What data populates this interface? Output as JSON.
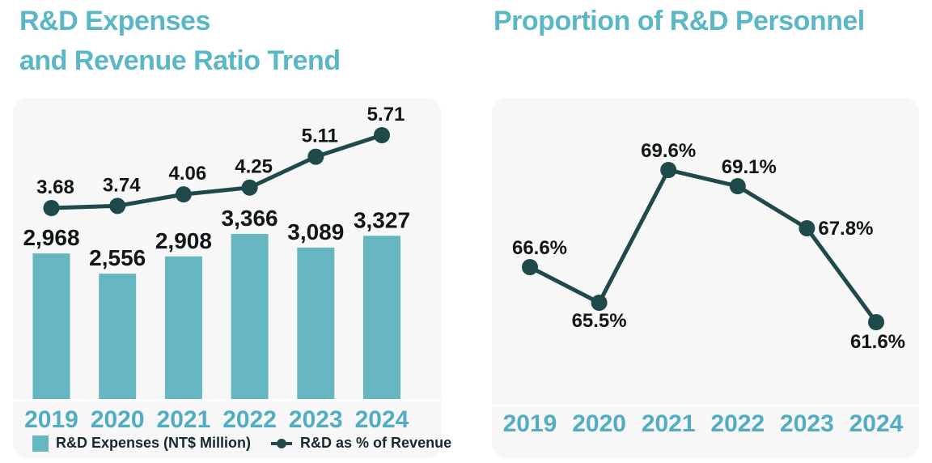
{
  "page": {
    "left_title_line1": "R&D Expenses",
    "left_title_line2": "and Revenue Ratio Trend",
    "right_title": "Proportion of R&D Personnel"
  },
  "colors": {
    "accent_teal": "#5bb6c5",
    "bar_teal": "#66b6c2",
    "dark_teal": "#1f4a4c",
    "year_teal": "#52adc2",
    "label_dark": "#111619",
    "card_background": "#f7f7f8"
  },
  "chart_data": [
    {
      "type": "bar+line",
      "title": "R&D Expenses and Revenue Ratio Trend",
      "categories": [
        "2019",
        "2020",
        "2021",
        "2022",
        "2023",
        "2024"
      ],
      "series": [
        {
          "name": "R&D Expenses (NT$ Million)",
          "type": "bar",
          "values": [
            2968,
            2556,
            2908,
            3366,
            3089,
            3327
          ],
          "labels": [
            "2,968",
            "2,556",
            "2,908",
            "3,366",
            "3,089",
            "3,327"
          ],
          "color": "#66b6c2"
        },
        {
          "name": "R&D as % of Revenue",
          "type": "line",
          "values": [
            3.68,
            3.74,
            4.06,
            4.25,
            5.11,
            5.71
          ],
          "labels": [
            "3.68",
            "3.74",
            "4.06",
            "4.25",
            "5.11",
            "5.71"
          ],
          "color": "#1f4a4c"
        }
      ],
      "xlabel": "",
      "ylabel": "",
      "grid": false,
      "legend_position": "bottom",
      "ylim_bar": [
        0,
        3700
      ],
      "ylim_line": [
        3.2,
        6.2
      ]
    },
    {
      "type": "line",
      "title": "Proportion of R&D Personnel",
      "categories": [
        "2019",
        "2020",
        "2021",
        "2022",
        "2023",
        "2024"
      ],
      "series": [
        {
          "name": "Proportion of R&D Personnel",
          "type": "line",
          "values": [
            66.6,
            65.5,
            69.6,
            69.1,
            67.8,
            61.6
          ],
          "labels": [
            "66.6%",
            "65.5%",
            "69.6%",
            "69.1%",
            "67.8%",
            "61.6%"
          ],
          "color": "#1f4a4c"
        }
      ],
      "xlabel": "",
      "ylabel": "",
      "grid": false,
      "legend_position": "none",
      "ylim": [
        60,
        71
      ]
    }
  ]
}
